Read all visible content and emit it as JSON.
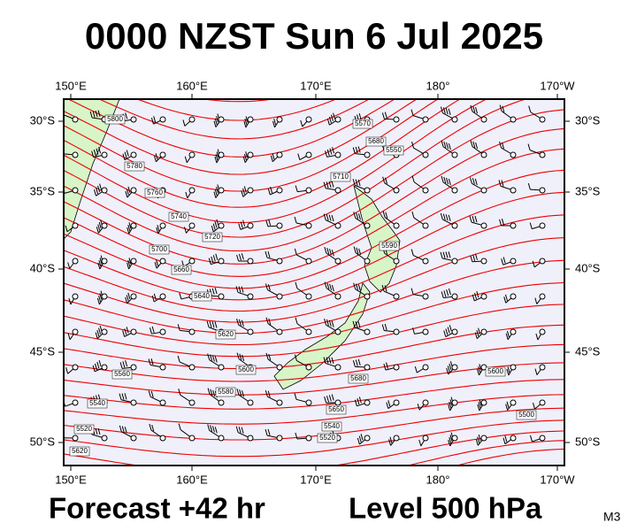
{
  "header": {
    "title": "0000 NZST Sun 6 Jul 2025"
  },
  "map": {
    "lon_labels": [
      "150°E",
      "160°E",
      "170°E",
      "180°",
      "170°W"
    ],
    "lat_labels": [
      "30°S",
      "35°S",
      "40°S",
      "45°S",
      "50°S"
    ],
    "contour_labels": [
      "5800",
      "5780",
      "5760",
      "5740",
      "5720",
      "5700",
      "5680",
      "5660",
      "5640",
      "5620",
      "5600",
      "5580",
      "5560",
      "5540",
      "5520",
      "5570",
      "5550",
      "5590",
      "5540",
      "5520",
      "5500",
      "5710",
      "5680",
      "5650",
      "5620",
      "5600"
    ]
  },
  "footer": {
    "forecast": "Forecast +42 hr",
    "level": "Level 500 hPa",
    "model": "M3"
  }
}
